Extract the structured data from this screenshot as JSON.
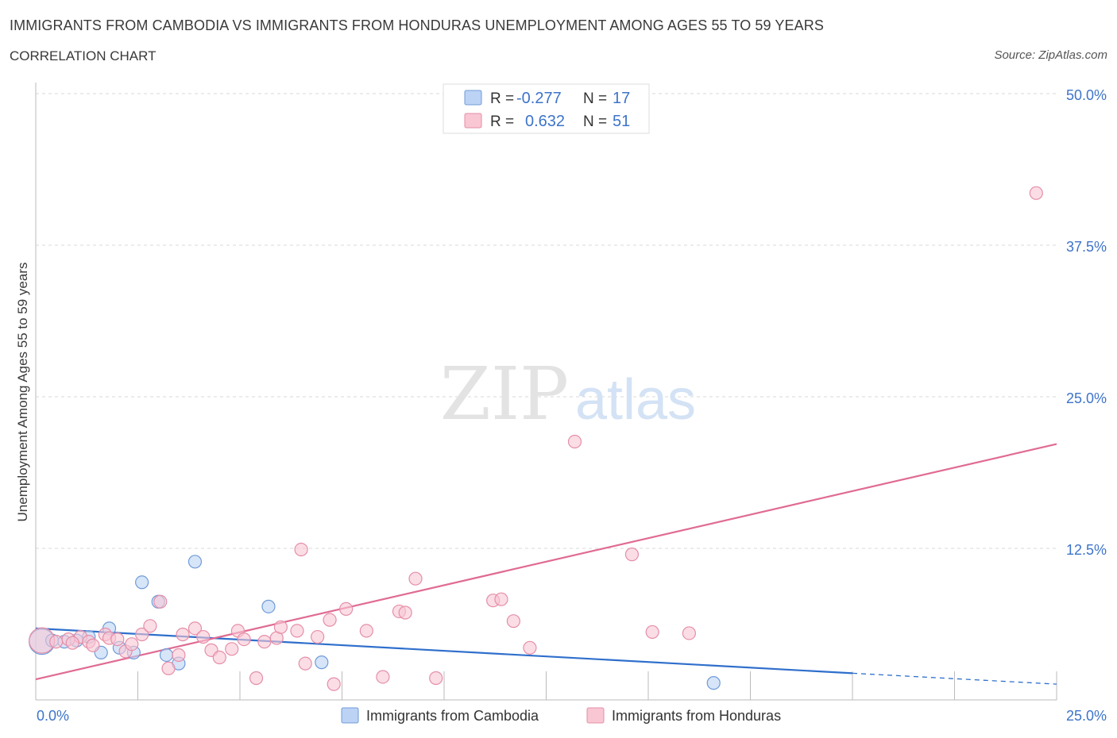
{
  "header": {
    "title": "IMMIGRANTS FROM CAMBODIA VS IMMIGRANTS FROM HONDURAS UNEMPLOYMENT AMONG AGES 55 TO 59 YEARS",
    "subtitle": "CORRELATION CHART",
    "source": "Source: ZipAtlas.com"
  },
  "watermark": {
    "zip": "ZIP",
    "atlas": "atlas"
  },
  "legend_box": {
    "rows": [
      {
        "r_label": "R = ",
        "r_value": "-0.277",
        "n_label": "N = ",
        "n_value": "17"
      },
      {
        "r_label": "R = ",
        "r_value": "0.632",
        "n_label": "N = ",
        "n_value": "51"
      }
    ]
  },
  "colors": {
    "cambodia_fill": "#bcd3f5",
    "cambodia_stroke": "#6f9bd8",
    "cambodia_line": "#2f6fcc",
    "honduras_fill": "#f9c6d4",
    "honduras_stroke": "#e58ea8",
    "honduras_line": "#e06b93",
    "axis_label_blue": "#3d74c9",
    "grid": "#d9d9d9"
  },
  "chart_data": {
    "type": "scatter",
    "title": "IMMIGRANTS FROM CAMBODIA VS IMMIGRANTS FROM HONDURAS UNEMPLOYMENT AMONG AGES 55 TO 59 YEARS",
    "xlabel": "",
    "ylabel": "Unemployment Among Ages 55 to 59 years",
    "xlim": [
      0,
      25
    ],
    "ylim": [
      0,
      50
    ],
    "x_tick_labels": [
      "0.0%",
      "25.0%"
    ],
    "y_ticks": [
      12.5,
      25.0,
      37.5,
      50.0
    ],
    "y_tick_labels": [
      "12.5%",
      "25.0%",
      "37.5%",
      "50.0%"
    ],
    "grid": true,
    "legend_position": "bottom-center",
    "series": [
      {
        "name": "Immigrants from Cambodia",
        "R": -0.277,
        "N": 17,
        "trend": {
          "x_start": 0,
          "y_start": 5.9,
          "x_solid_end": 20,
          "y_solid_end": 2.2,
          "x_end": 25,
          "y_end": 1.3
        },
        "points": [
          {
            "x": 0.15,
            "y": 4.8,
            "big": true
          },
          {
            "x": 0.4,
            "y": 4.9
          },
          {
            "x": 0.7,
            "y": 4.8
          },
          {
            "x": 1.0,
            "y": 4.9
          },
          {
            "x": 1.3,
            "y": 5.2
          },
          {
            "x": 1.6,
            "y": 3.9
          },
          {
            "x": 1.8,
            "y": 5.9
          },
          {
            "x": 2.05,
            "y": 4.3
          },
          {
            "x": 2.4,
            "y": 3.9
          },
          {
            "x": 2.6,
            "y": 9.7
          },
          {
            "x": 3.0,
            "y": 8.1
          },
          {
            "x": 3.2,
            "y": 3.7
          },
          {
            "x": 3.5,
            "y": 3.0
          },
          {
            "x": 3.9,
            "y": 11.4
          },
          {
            "x": 5.7,
            "y": 7.7
          },
          {
            "x": 7.0,
            "y": 3.1
          },
          {
            "x": 16.6,
            "y": 1.4
          }
        ]
      },
      {
        "name": "Immigrants from Honduras",
        "R": 0.632,
        "N": 51,
        "trend": {
          "x_start": 0,
          "y_start": 1.7,
          "x_end": 25,
          "y_end": 21.1
        },
        "points": [
          {
            "x": 0.15,
            "y": 4.9,
            "big": true
          },
          {
            "x": 0.5,
            "y": 4.8
          },
          {
            "x": 0.8,
            "y": 5.0
          },
          {
            "x": 1.1,
            "y": 5.2
          },
          {
            "x": 1.3,
            "y": 4.8
          },
          {
            "x": 1.4,
            "y": 4.5
          },
          {
            "x": 1.7,
            "y": 5.4
          },
          {
            "x": 1.8,
            "y": 5.1
          },
          {
            "x": 2.0,
            "y": 5.0
          },
          {
            "x": 2.2,
            "y": 4.0
          },
          {
            "x": 2.35,
            "y": 4.6
          },
          {
            "x": 2.6,
            "y": 5.4
          },
          {
            "x": 2.8,
            "y": 6.1
          },
          {
            "x": 3.05,
            "y": 8.1
          },
          {
            "x": 3.25,
            "y": 2.6
          },
          {
            "x": 3.5,
            "y": 3.7
          },
          {
            "x": 3.6,
            "y": 5.4
          },
          {
            "x": 3.9,
            "y": 5.9
          },
          {
            "x": 4.1,
            "y": 5.2
          },
          {
            "x": 4.3,
            "y": 4.1
          },
          {
            "x": 4.5,
            "y": 3.5
          },
          {
            "x": 4.8,
            "y": 4.2
          },
          {
            "x": 4.95,
            "y": 5.7
          },
          {
            "x": 5.1,
            "y": 5.0
          },
          {
            "x": 5.4,
            "y": 1.8
          },
          {
            "x": 5.6,
            "y": 4.8
          },
          {
            "x": 5.9,
            "y": 5.1
          },
          {
            "x": 6.0,
            "y": 6.0
          },
          {
            "x": 6.4,
            "y": 5.7
          },
          {
            "x": 6.5,
            "y": 12.4
          },
          {
            "x": 6.6,
            "y": 3.0
          },
          {
            "x": 6.9,
            "y": 5.2
          },
          {
            "x": 7.2,
            "y": 6.6
          },
          {
            "x": 7.3,
            "y": 1.3
          },
          {
            "x": 7.6,
            "y": 7.5
          },
          {
            "x": 8.1,
            "y": 5.7
          },
          {
            "x": 8.5,
            "y": 1.9
          },
          {
            "x": 8.9,
            "y": 7.3
          },
          {
            "x": 9.05,
            "y": 7.2
          },
          {
            "x": 9.3,
            "y": 10.0
          },
          {
            "x": 9.8,
            "y": 1.8
          },
          {
            "x": 11.2,
            "y": 8.2
          },
          {
            "x": 11.4,
            "y": 8.3
          },
          {
            "x": 11.7,
            "y": 6.5
          },
          {
            "x": 12.1,
            "y": 4.3
          },
          {
            "x": 13.2,
            "y": 21.3
          },
          {
            "x": 14.6,
            "y": 12.0
          },
          {
            "x": 15.1,
            "y": 5.6
          },
          {
            "x": 16.0,
            "y": 5.5
          },
          {
            "x": 24.5,
            "y": 41.8
          },
          {
            "x": 0.9,
            "y": 4.7
          }
        ]
      }
    ]
  }
}
